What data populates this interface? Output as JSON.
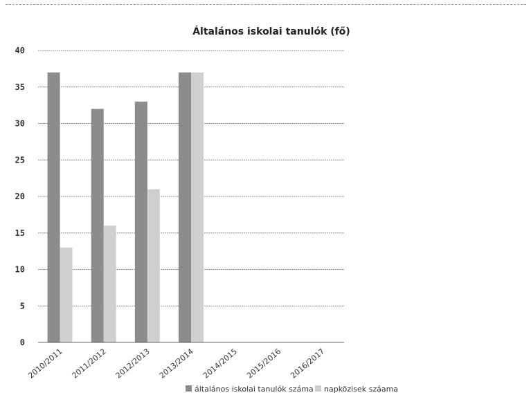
{
  "chart_data": {
    "type": "bar",
    "title": "Általános iskolai tanulók (fő)",
    "xlabel": "",
    "ylabel": "",
    "ylim": [
      0,
      40
    ],
    "yticks": [
      0,
      5,
      10,
      15,
      20,
      25,
      30,
      35,
      40
    ],
    "grid": true,
    "legend_position": "bottom",
    "categories": [
      "2010/2011",
      "2011/2012",
      "2012/2013",
      "2013/2014",
      "2014/2015",
      "2015/2016",
      "2016/2017"
    ],
    "series": [
      {
        "name": "általános iskolai tanulók száma",
        "color": "#8c8c8c",
        "values": [
          37,
          32,
          33,
          37,
          0,
          0,
          0
        ]
      },
      {
        "name": "napközisek száama",
        "color": "#cfcfcf",
        "values": [
          13,
          16,
          21,
          37,
          0,
          0,
          0
        ]
      }
    ]
  }
}
